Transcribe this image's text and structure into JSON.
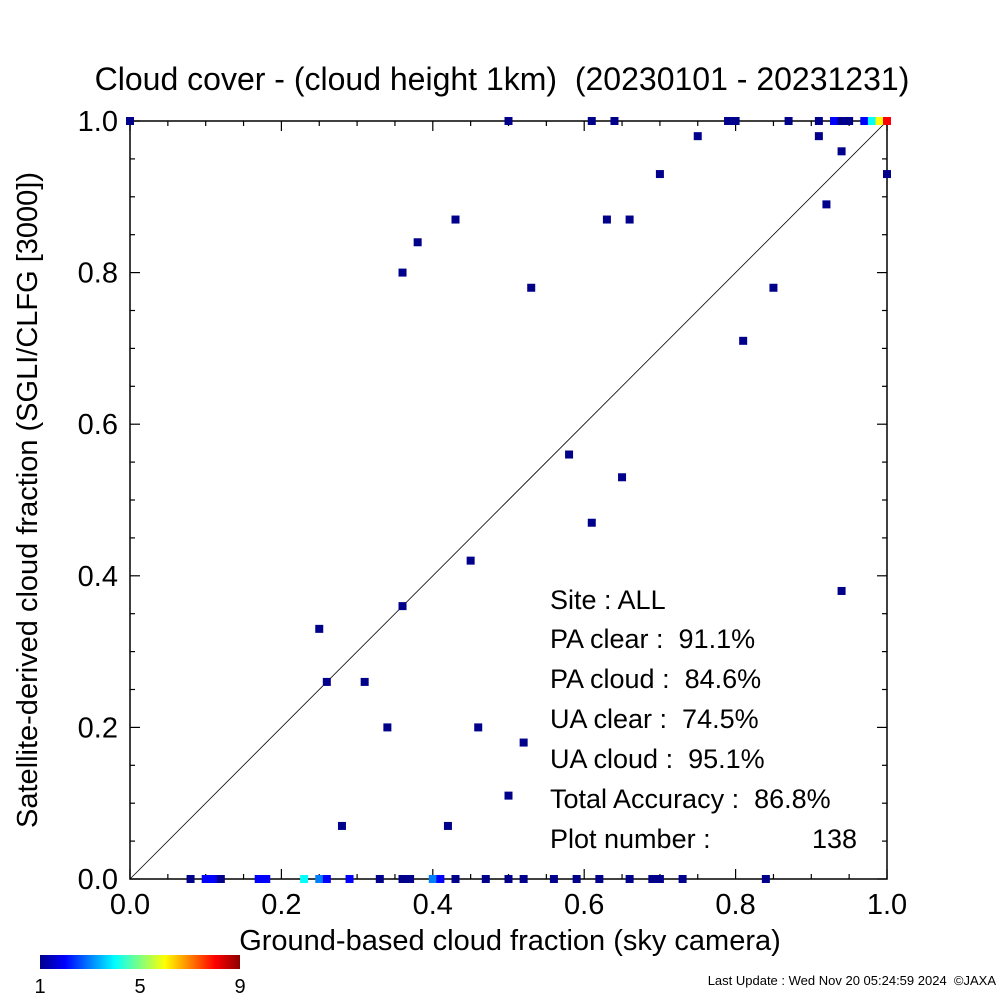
{
  "chart_data": {
    "type": "scatter",
    "title": "Cloud cover - (cloud height 1km)  (20230101 - 20231231)",
    "xlabel": "Ground-based cloud fraction (sky camera)",
    "ylabel": "Satellite-derived cloud fraction (SGLI/CLFG [3000])",
    "xlim": [
      0,
      1
    ],
    "ylim": [
      0,
      1
    ],
    "xticks": [
      "0.0",
      "0.2",
      "0.4",
      "0.6",
      "0.8",
      "1.0"
    ],
    "yticks": [
      "0.0",
      "0.2",
      "0.4",
      "0.6",
      "0.8",
      "1.0"
    ],
    "reference_line": "y = x",
    "grid": false,
    "colorbar": {
      "title": "",
      "min": 1,
      "max": 9,
      "ticks": [
        "1",
        "5",
        "9"
      ],
      "colors": [
        "#00008b",
        "#0000ff",
        "#0080ff",
        "#00ffff",
        "#80ff80",
        "#ffff00",
        "#ff8000",
        "#ff0000",
        "#8b0000"
      ]
    },
    "points": [
      {
        "x": 0.0,
        "y": 1.0,
        "c": "#00008b"
      },
      {
        "x": 0.5,
        "y": 1.0,
        "c": "#00008b"
      },
      {
        "x": 0.61,
        "y": 1.0,
        "c": "#00008b"
      },
      {
        "x": 0.64,
        "y": 1.0,
        "c": "#00008b"
      },
      {
        "x": 0.79,
        "y": 1.0,
        "c": "#00008b"
      },
      {
        "x": 0.8,
        "y": 1.0,
        "c": "#00008b"
      },
      {
        "x": 0.87,
        "y": 1.0,
        "c": "#00008b"
      },
      {
        "x": 0.91,
        "y": 1.0,
        "c": "#00008b"
      },
      {
        "x": 0.93,
        "y": 1.0,
        "c": "#0000ff"
      },
      {
        "x": 0.94,
        "y": 1.0,
        "c": "#00008b"
      },
      {
        "x": 0.95,
        "y": 1.0,
        "c": "#00008b"
      },
      {
        "x": 0.97,
        "y": 1.0,
        "c": "#0000ff"
      },
      {
        "x": 0.98,
        "y": 1.0,
        "c": "#00ffff"
      },
      {
        "x": 0.99,
        "y": 1.0,
        "c": "#ffff00"
      },
      {
        "x": 1.0,
        "y": 1.0,
        "c": "#ff0000"
      },
      {
        "x": 0.75,
        "y": 0.98,
        "c": "#00008b"
      },
      {
        "x": 0.91,
        "y": 0.98,
        "c": "#00008b"
      },
      {
        "x": 0.94,
        "y": 0.96,
        "c": "#00008b"
      },
      {
        "x": 0.7,
        "y": 0.93,
        "c": "#00008b"
      },
      {
        "x": 1.0,
        "y": 0.93,
        "c": "#00008b"
      },
      {
        "x": 0.92,
        "y": 0.89,
        "c": "#00008b"
      },
      {
        "x": 0.43,
        "y": 0.87,
        "c": "#00008b"
      },
      {
        "x": 0.63,
        "y": 0.87,
        "c": "#00008b"
      },
      {
        "x": 0.66,
        "y": 0.87,
        "c": "#00008b"
      },
      {
        "x": 0.38,
        "y": 0.84,
        "c": "#00008b"
      },
      {
        "x": 0.36,
        "y": 0.8,
        "c": "#00008b"
      },
      {
        "x": 0.53,
        "y": 0.78,
        "c": "#00008b"
      },
      {
        "x": 0.85,
        "y": 0.78,
        "c": "#00008b"
      },
      {
        "x": 0.81,
        "y": 0.71,
        "c": "#00008b"
      },
      {
        "x": 0.58,
        "y": 0.56,
        "c": "#00008b"
      },
      {
        "x": 0.65,
        "y": 0.53,
        "c": "#00008b"
      },
      {
        "x": 0.61,
        "y": 0.47,
        "c": "#00008b"
      },
      {
        "x": 0.45,
        "y": 0.42,
        "c": "#00008b"
      },
      {
        "x": 0.94,
        "y": 0.38,
        "c": "#00008b"
      },
      {
        "x": 0.36,
        "y": 0.36,
        "c": "#00008b"
      },
      {
        "x": 0.25,
        "y": 0.33,
        "c": "#00008b"
      },
      {
        "x": 0.26,
        "y": 0.26,
        "c": "#00008b"
      },
      {
        "x": 0.31,
        "y": 0.26,
        "c": "#00008b"
      },
      {
        "x": 0.34,
        "y": 0.2,
        "c": "#00008b"
      },
      {
        "x": 0.46,
        "y": 0.2,
        "c": "#00008b"
      },
      {
        "x": 0.52,
        "y": 0.18,
        "c": "#00008b"
      },
      {
        "x": 0.5,
        "y": 0.11,
        "c": "#00008b"
      },
      {
        "x": 0.28,
        "y": 0.07,
        "c": "#00008b"
      },
      {
        "x": 0.42,
        "y": 0.07,
        "c": "#00008b"
      },
      {
        "x": 0.08,
        "y": 0.0,
        "c": "#00008b"
      },
      {
        "x": 0.1,
        "y": 0.0,
        "c": "#0000ff"
      },
      {
        "x": 0.11,
        "y": 0.0,
        "c": "#0000ff"
      },
      {
        "x": 0.12,
        "y": 0.0,
        "c": "#00008b"
      },
      {
        "x": 0.17,
        "y": 0.0,
        "c": "#0000ff"
      },
      {
        "x": 0.18,
        "y": 0.0,
        "c": "#0000ff"
      },
      {
        "x": 0.23,
        "y": 0.0,
        "c": "#00ffff"
      },
      {
        "x": 0.25,
        "y": 0.0,
        "c": "#0080ff"
      },
      {
        "x": 0.26,
        "y": 0.0,
        "c": "#0000ff"
      },
      {
        "x": 0.29,
        "y": 0.0,
        "c": "#0000ff"
      },
      {
        "x": 0.33,
        "y": 0.0,
        "c": "#00008b"
      },
      {
        "x": 0.36,
        "y": 0.0,
        "c": "#00008b"
      },
      {
        "x": 0.37,
        "y": 0.0,
        "c": "#00008b"
      },
      {
        "x": 0.4,
        "y": 0.0,
        "c": "#0080ff"
      },
      {
        "x": 0.41,
        "y": 0.0,
        "c": "#0000ff"
      },
      {
        "x": 0.43,
        "y": 0.0,
        "c": "#00008b"
      },
      {
        "x": 0.47,
        "y": 0.0,
        "c": "#00008b"
      },
      {
        "x": 0.5,
        "y": 0.0,
        "c": "#00008b"
      },
      {
        "x": 0.52,
        "y": 0.0,
        "c": "#00008b"
      },
      {
        "x": 0.56,
        "y": 0.0,
        "c": "#00008b"
      },
      {
        "x": 0.59,
        "y": 0.0,
        "c": "#00008b"
      },
      {
        "x": 0.62,
        "y": 0.0,
        "c": "#00008b"
      },
      {
        "x": 0.66,
        "y": 0.0,
        "c": "#00008b"
      },
      {
        "x": 0.69,
        "y": 0.0,
        "c": "#00008b"
      },
      {
        "x": 0.7,
        "y": 0.0,
        "c": "#00008b"
      },
      {
        "x": 0.73,
        "y": 0.0,
        "c": "#00008b"
      },
      {
        "x": 0.84,
        "y": 0.0,
        "c": "#00008b"
      }
    ],
    "stats": {
      "site": "Site : ALL",
      "pa_clear": "PA clear :  91.1%",
      "pa_cloud": "PA cloud :  84.6%",
      "ua_clear": "UA clear :  74.5%",
      "ua_cloud": "UA cloud :  95.1%",
      "total_accuracy": "Total Accuracy :  86.8%",
      "plot_number_label": "Plot number :",
      "plot_number_value": "138"
    }
  },
  "footer": {
    "last_update": "Last Update : Wed Nov 20 05:24:59 2024  ©JAXA"
  }
}
